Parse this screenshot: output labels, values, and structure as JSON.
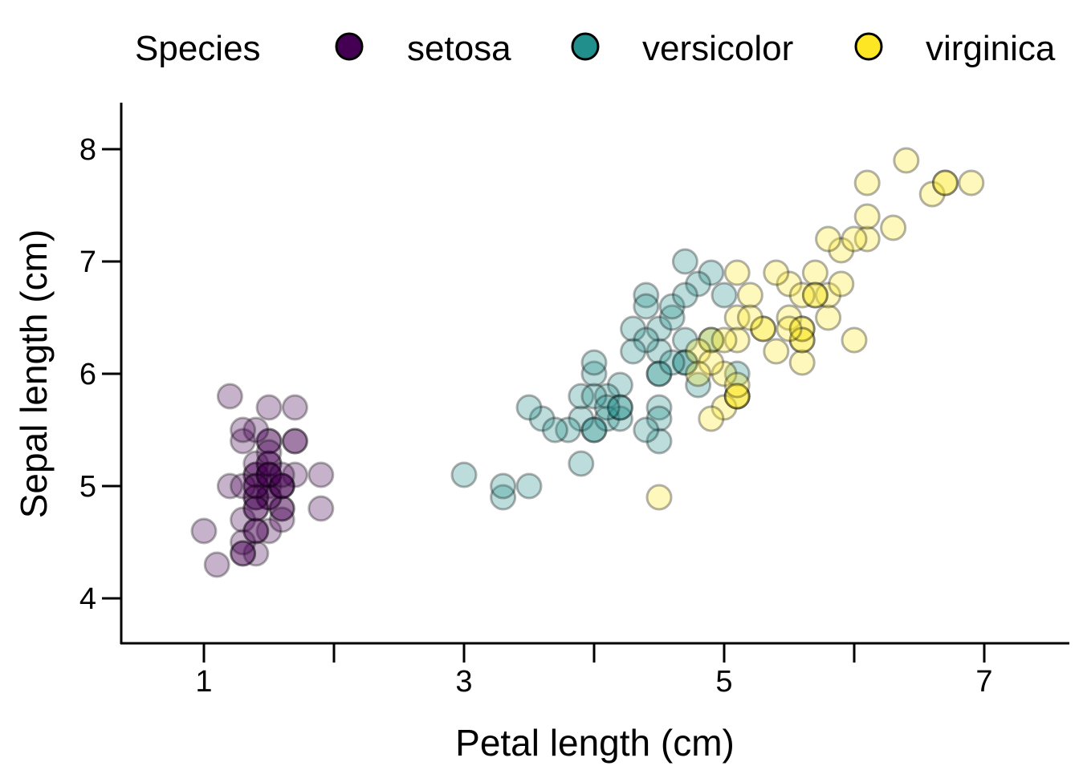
{
  "chart_data": {
    "type": "scatter",
    "title": "",
    "xlabel": "Petal length (cm)",
    "ylabel": "Sepal length (cm)",
    "xlim": [
      0.4,
      7.6
    ],
    "ylim": [
      3.6,
      8.4
    ],
    "xticks": [
      1,
      2,
      3,
      4,
      5,
      6,
      7
    ],
    "xtick_labels": [
      "1",
      "",
      "3",
      "",
      "5",
      "",
      "7"
    ],
    "yticks": [
      4,
      5,
      6,
      7,
      8
    ],
    "ytick_labels": [
      "4",
      "5",
      "6",
      "7",
      "8"
    ],
    "grid": false,
    "legend": {
      "title": "Species",
      "placement": "top"
    },
    "series": [
      {
        "name": "setosa",
        "color": "#440154",
        "x": [
          1.4,
          1.4,
          1.3,
          1.5,
          1.4,
          1.7,
          1.4,
          1.5,
          1.4,
          1.5,
          1.5,
          1.6,
          1.4,
          1.1,
          1.2,
          1.5,
          1.3,
          1.4,
          1.7,
          1.5,
          1.7,
          1.5,
          1.0,
          1.7,
          1.9,
          1.6,
          1.6,
          1.5,
          1.4,
          1.6,
          1.6,
          1.5,
          1.5,
          1.4,
          1.5,
          1.2,
          1.3,
          1.4,
          1.3,
          1.5,
          1.3,
          1.3,
          1.3,
          1.6,
          1.9,
          1.4,
          1.6,
          1.4,
          1.5,
          1.4
        ],
        "y": [
          5.1,
          4.9,
          4.7,
          4.6,
          5.0,
          5.4,
          4.6,
          5.0,
          4.4,
          4.9,
          5.4,
          4.8,
          4.8,
          4.3,
          5.8,
          5.7,
          5.4,
          5.1,
          5.7,
          5.1,
          5.4,
          5.1,
          4.6,
          5.1,
          4.8,
          5.0,
          5.0,
          5.2,
          5.2,
          4.7,
          4.8,
          5.4,
          5.2,
          5.5,
          4.9,
          5.0,
          5.5,
          4.9,
          4.4,
          5.1,
          5.0,
          4.5,
          4.4,
          5.0,
          5.1,
          4.8,
          5.1,
          4.6,
          5.3,
          5.0
        ]
      },
      {
        "name": "versicolor",
        "color": "#21908C",
        "x": [
          4.7,
          4.5,
          4.9,
          4.0,
          4.6,
          4.5,
          4.7,
          3.3,
          4.6,
          3.9,
          3.5,
          4.2,
          4.0,
          4.7,
          3.6,
          4.4,
          4.5,
          4.1,
          4.5,
          3.9,
          4.8,
          4.0,
          4.9,
          4.7,
          4.3,
          4.4,
          4.8,
          5.0,
          4.5,
          3.5,
          3.8,
          3.7,
          3.9,
          5.1,
          4.5,
          4.5,
          4.7,
          4.4,
          4.1,
          4.0,
          4.4,
          4.6,
          4.0,
          3.3,
          4.2,
          4.2,
          4.2,
          4.3,
          3.0,
          4.1
        ],
        "y": [
          7.0,
          6.4,
          6.9,
          5.5,
          6.5,
          5.7,
          6.3,
          4.9,
          6.6,
          5.2,
          5.0,
          5.9,
          6.0,
          6.1,
          5.6,
          6.7,
          5.6,
          5.8,
          6.2,
          5.6,
          5.9,
          6.1,
          6.3,
          6.1,
          6.4,
          6.6,
          6.8,
          6.7,
          6.0,
          5.7,
          5.5,
          5.5,
          5.8,
          6.0,
          5.4,
          6.0,
          6.7,
          6.3,
          5.6,
          5.5,
          5.5,
          6.1,
          5.8,
          5.0,
          5.6,
          5.7,
          5.7,
          6.2,
          5.1,
          5.7
        ]
      },
      {
        "name": "virginica",
        "color": "#FDE725",
        "x": [
          6.0,
          5.1,
          5.9,
          5.6,
          5.8,
          6.6,
          4.5,
          6.3,
          5.8,
          6.1,
          5.1,
          5.3,
          5.5,
          5.0,
          5.1,
          5.3,
          5.5,
          6.7,
          6.9,
          5.0,
          5.7,
          4.9,
          6.7,
          4.9,
          5.7,
          6.0,
          4.8,
          4.9,
          5.6,
          5.8,
          6.1,
          6.4,
          5.6,
          5.1,
          5.6,
          6.1,
          5.6,
          5.5,
          4.8,
          5.4,
          5.6,
          5.1,
          5.1,
          5.9,
          5.7,
          5.2,
          5.0,
          5.2,
          5.4,
          5.1
        ],
        "y": [
          6.3,
          5.8,
          7.1,
          6.3,
          6.5,
          7.6,
          4.9,
          7.3,
          6.7,
          7.2,
          6.5,
          6.4,
          6.8,
          5.7,
          5.8,
          6.4,
          6.5,
          7.7,
          7.7,
          6.0,
          6.9,
          5.6,
          7.7,
          6.3,
          6.7,
          7.2,
          6.2,
          6.1,
          6.4,
          7.2,
          7.4,
          7.9,
          6.4,
          6.3,
          6.1,
          7.7,
          6.3,
          6.4,
          6.0,
          6.9,
          6.7,
          6.9,
          5.8,
          6.8,
          6.7,
          6.7,
          6.3,
          6.5,
          6.2,
          5.9
        ]
      }
    ]
  }
}
